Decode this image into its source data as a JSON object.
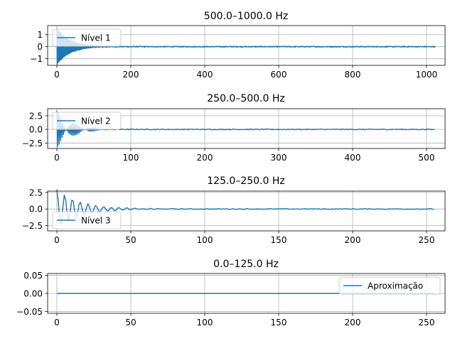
{
  "figure": {
    "colors": {
      "series": "#1f77b4",
      "grid": "#b0b0b0",
      "axis": "#000000",
      "legend_border": "#cccccc"
    }
  },
  "chart_data": [
    {
      "type": "line",
      "title": "500.0–1000.0 Hz",
      "xlabel": "",
      "ylabel": "",
      "xlim": [
        -25,
        1050
      ],
      "ylim": [
        -1.55,
        1.75
      ],
      "xticks": [
        0,
        200,
        400,
        600,
        800,
        1000
      ],
      "yticks": [
        -1,
        0,
        1
      ],
      "grid": true,
      "legend_position": "upper left",
      "series": [
        {
          "name": "Nível 1",
          "n_points": 1024,
          "signal": {
            "kind": "decaying_oscillation",
            "amplitude": 1.5,
            "decay": 0.03,
            "cycles_per_sample": 0.5,
            "noise": 0.04
          }
        }
      ]
    },
    {
      "type": "line",
      "title": "250.0–500.0 Hz",
      "xlabel": "",
      "ylabel": "",
      "xlim": [
        -12.5,
        525
      ],
      "ylim": [
        -3.5,
        3.8
      ],
      "xticks": [
        0,
        100,
        200,
        300,
        400,
        500
      ],
      "yticks": [
        -2.5,
        0.0,
        2.5
      ],
      "grid": true,
      "legend_position": "upper left",
      "series": [
        {
          "name": "Nível 2",
          "n_points": 512,
          "signal": {
            "kind": "decaying_oscillation",
            "amplitude": 3.4,
            "decay": 0.05,
            "cycles_per_sample": 0.48,
            "noise": 0.08
          }
        }
      ]
    },
    {
      "type": "line",
      "title": "125.0–250.0 Hz",
      "xlabel": "",
      "ylabel": "",
      "xlim": [
        -6.25,
        262.5
      ],
      "ylim": [
        -3.3,
        2.7
      ],
      "xticks": [
        0,
        50,
        100,
        150,
        200,
        250
      ],
      "yticks": [
        -2.5,
        0.0,
        2.5
      ],
      "grid": true,
      "legend_position": "lower left",
      "series": [
        {
          "name": "Nível 3",
          "n_points": 256,
          "signal": {
            "kind": "decaying_oscillation",
            "amplitude": 3.0,
            "decay": 0.065,
            "cycles_per_sample": 0.19,
            "noise": 0.06
          }
        }
      ]
    },
    {
      "type": "line",
      "title": "0.0–125.0 Hz",
      "xlabel": "",
      "ylabel": "",
      "xlim": [
        -6.25,
        262.5
      ],
      "ylim": [
        -0.055,
        0.055
      ],
      "xticks": [
        0,
        50,
        100,
        150,
        200,
        250
      ],
      "yticks": [
        -0.05,
        0.0,
        0.05
      ],
      "grid": true,
      "legend_position": "upper right",
      "series": [
        {
          "name": "Aproximação",
          "n_points": 256,
          "signal": {
            "kind": "constant",
            "value": 0.0
          }
        }
      ]
    }
  ]
}
